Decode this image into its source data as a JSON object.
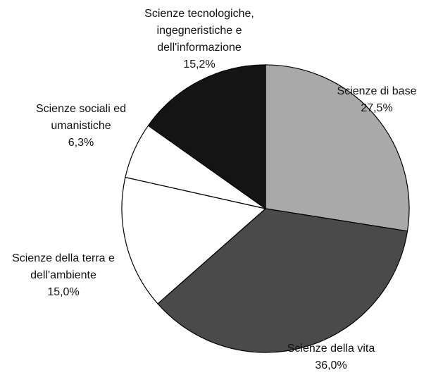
{
  "chart_data": {
    "type": "pie",
    "categories": [
      "Scienze di base",
      "Scienze della vita",
      "Scienze della terra e dell'ambiente",
      "Scienze sociali ed umanistiche",
      "Scienze tecnologiche, ingegneristiche e dell'informazione"
    ],
    "values": [
      27.5,
      36.0,
      15.0,
      6.3,
      15.2
    ],
    "value_labels": [
      "27,5%",
      "36,0%",
      "15,0%",
      "6,3%",
      "15,2%"
    ],
    "colors": [
      "#a9a9a9",
      "#4a4a4a",
      "#ffffff",
      "#ffffff",
      "#141414"
    ]
  }
}
